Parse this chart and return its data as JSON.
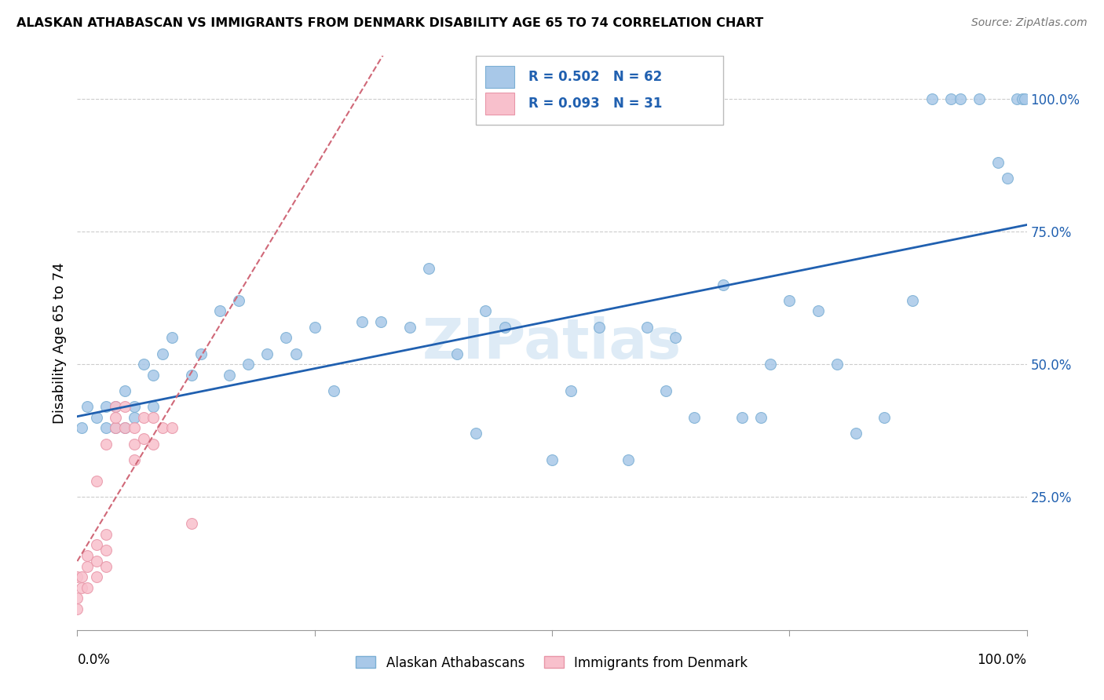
{
  "title": "ALASKAN ATHABASCAN VS IMMIGRANTS FROM DENMARK DISABILITY AGE 65 TO 74 CORRELATION CHART",
  "source": "Source: ZipAtlas.com",
  "ylabel": "Disability Age 65 to 74",
  "legend_r1": "R = 0.502",
  "legend_n1": "N = 62",
  "legend_r2": "R = 0.093",
  "legend_n2": "N = 31",
  "legend_label1": "Alaskan Athabascans",
  "legend_label2": "Immigrants from Denmark",
  "blue_color": "#A8C8E8",
  "blue_edge": "#7BAFD4",
  "pink_color": "#F8C0CC",
  "pink_edge": "#E896A8",
  "trend_blue": "#2060B0",
  "trend_pink": "#D06878",
  "watermark": "ZIPatlas",
  "blue_x": [
    0.005,
    0.01,
    0.02,
    0.03,
    0.03,
    0.04,
    0.04,
    0.05,
    0.05,
    0.06,
    0.06,
    0.07,
    0.08,
    0.08,
    0.09,
    0.1,
    0.12,
    0.13,
    0.15,
    0.16,
    0.17,
    0.18,
    0.2,
    0.22,
    0.23,
    0.25,
    0.27,
    0.3,
    0.32,
    0.35,
    0.37,
    0.4,
    0.42,
    0.43,
    0.45,
    0.5,
    0.52,
    0.55,
    0.58,
    0.6,
    0.62,
    0.63,
    0.65,
    0.68,
    0.7,
    0.72,
    0.73,
    0.75,
    0.78,
    0.8,
    0.82,
    0.85,
    0.88,
    0.9,
    0.92,
    0.93,
    0.95,
    0.97,
    0.98,
    0.99,
    0.995,
    0.998
  ],
  "blue_y": [
    0.38,
    0.42,
    0.4,
    0.38,
    0.42,
    0.38,
    0.42,
    0.45,
    0.38,
    0.4,
    0.42,
    0.5,
    0.48,
    0.42,
    0.52,
    0.55,
    0.48,
    0.52,
    0.6,
    0.48,
    0.62,
    0.5,
    0.52,
    0.55,
    0.52,
    0.57,
    0.45,
    0.58,
    0.58,
    0.57,
    0.68,
    0.52,
    0.37,
    0.6,
    0.57,
    0.32,
    0.45,
    0.57,
    0.32,
    0.57,
    0.45,
    0.55,
    0.4,
    0.65,
    0.4,
    0.4,
    0.5,
    0.62,
    0.6,
    0.5,
    0.37,
    0.4,
    0.62,
    1.0,
    1.0,
    1.0,
    1.0,
    0.88,
    0.85,
    1.0,
    1.0,
    1.0
  ],
  "pink_x": [
    0.0,
    0.0,
    0.0,
    0.005,
    0.005,
    0.01,
    0.01,
    0.01,
    0.02,
    0.02,
    0.02,
    0.02,
    0.03,
    0.03,
    0.03,
    0.03,
    0.04,
    0.04,
    0.04,
    0.05,
    0.05,
    0.06,
    0.06,
    0.06,
    0.07,
    0.07,
    0.08,
    0.08,
    0.09,
    0.1,
    0.12
  ],
  "pink_y": [
    0.1,
    0.06,
    0.04,
    0.1,
    0.08,
    0.12,
    0.08,
    0.14,
    0.1,
    0.13,
    0.16,
    0.28,
    0.12,
    0.15,
    0.18,
    0.35,
    0.38,
    0.4,
    0.42,
    0.38,
    0.42,
    0.35,
    0.38,
    0.32,
    0.36,
    0.4,
    0.35,
    0.4,
    0.38,
    0.38,
    0.2
  ]
}
